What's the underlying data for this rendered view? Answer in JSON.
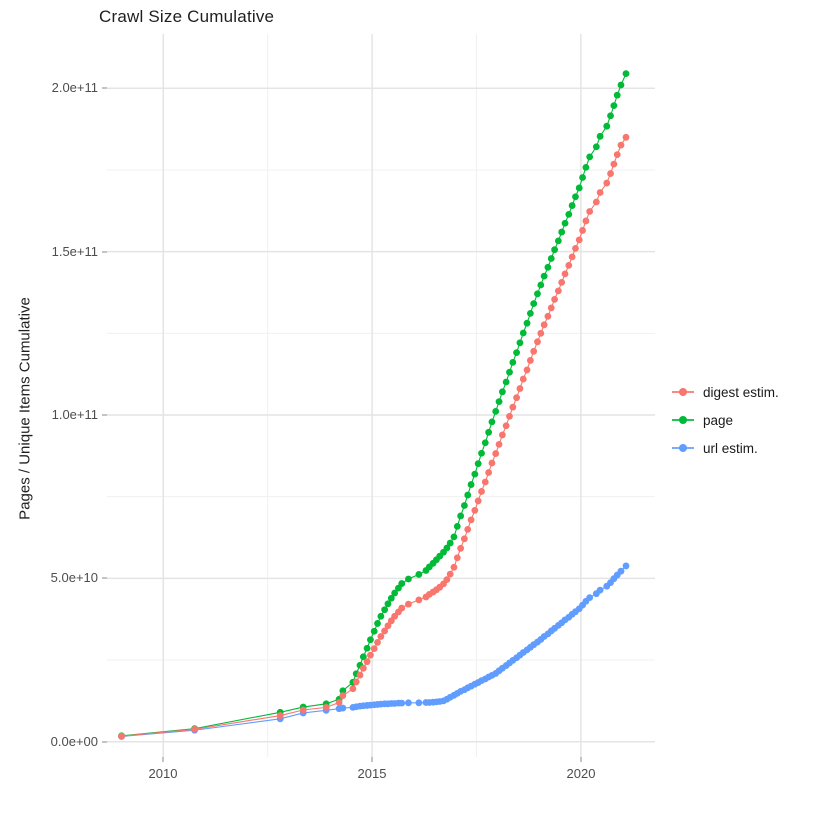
{
  "page": {
    "title": "Crawl Size Cumulative"
  },
  "axes": {
    "y_label": "Pages / Unique Items Cumulative",
    "y_ticks": [
      "0.0e+00",
      "5.0e+10",
      "1.0e+11",
      "1.5e+11",
      "2.0e+11"
    ],
    "x_ticks": [
      "2010",
      "2015",
      "2020"
    ]
  },
  "legend": {
    "items": [
      {
        "label": "digest estim.",
        "color": "#F8766D"
      },
      {
        "label": "page",
        "color": "#00BA38"
      },
      {
        "label": "url estim.",
        "color": "#619CFF"
      }
    ]
  },
  "chart_data": {
    "type": "line",
    "title": "Crawl Size Cumulative",
    "xlabel": "",
    "ylabel": "Pages / Unique Items Cumulative",
    "x_unit": "decimal year (crawl date)",
    "y_unit": "billions of pages / unique items (1e9)",
    "xlim": [
      2008.6,
      2021.8
    ],
    "ylim": [
      0,
      215
    ],
    "x_tick_values": [
      2010,
      2015,
      2020
    ],
    "y_tick_values": [
      0,
      50,
      100,
      150,
      200
    ],
    "y_tick_labels": [
      "0.0e+00",
      "5.0e+10",
      "1.0e+11",
      "1.5e+11",
      "2.0e+11"
    ],
    "grid": true,
    "legend_position": "right",
    "marker": "point",
    "x": [
      2009.0,
      2010.75,
      2012.8,
      2013.35,
      2013.9,
      2014.21,
      2014.3,
      2014.54,
      2014.62,
      2014.71,
      2014.79,
      2014.88,
      2014.96,
      2015.05,
      2015.13,
      2015.21,
      2015.3,
      2015.38,
      2015.46,
      2015.54,
      2015.63,
      2015.71,
      2015.87,
      2016.12,
      2016.29,
      2016.37,
      2016.46,
      2016.54,
      2016.62,
      2016.71,
      2016.79,
      2016.87,
      2016.96,
      2017.04,
      2017.12,
      2017.21,
      2017.29,
      2017.37,
      2017.46,
      2017.54,
      2017.62,
      2017.71,
      2017.79,
      2017.87,
      2017.96,
      2018.04,
      2018.12,
      2018.21,
      2018.29,
      2018.37,
      2018.46,
      2018.54,
      2018.62,
      2018.71,
      2018.79,
      2018.87,
      2018.96,
      2019.04,
      2019.12,
      2019.21,
      2019.29,
      2019.37,
      2019.46,
      2019.54,
      2019.62,
      2019.71,
      2019.79,
      2019.87,
      2019.96,
      2020.04,
      2020.12,
      2020.21,
      2020.37,
      2020.46,
      2020.62,
      2020.71,
      2020.79,
      2020.87,
      2020.96,
      2021.08
    ],
    "series": [
      {
        "name": "digest estim.",
        "color": "#F8766D",
        "values": [
          1.7,
          3.8,
          8.0,
          9.7,
          10.5,
          12.0,
          14.1,
          16.2,
          18.3,
          20.4,
          22.5,
          24.5,
          26.5,
          28.5,
          30.4,
          32.2,
          33.9,
          35.5,
          37.0,
          38.4,
          39.7,
          40.9,
          42.1,
          43.4,
          44.3,
          45.1,
          45.8,
          46.5,
          47.3,
          48.3,
          49.6,
          51.3,
          53.4,
          56.3,
          59.2,
          62.1,
          65.0,
          67.9,
          70.8,
          73.7,
          76.6,
          79.5,
          82.4,
          85.3,
          88.2,
          91.0,
          93.9,
          96.7,
          99.6,
          102.4,
          105.3,
          108.1,
          111.0,
          113.8,
          116.7,
          119.5,
          122.4,
          125.0,
          127.6,
          130.2,
          132.8,
          135.4,
          138.0,
          140.6,
          143.2,
          145.8,
          148.4,
          151.0,
          153.6,
          156.5,
          159.4,
          162.3,
          165.2,
          168.1,
          171.0,
          173.9,
          176.8,
          179.7,
          182.6,
          185.0
        ]
      },
      {
        "name": "page",
        "color": "#00BA38",
        "values": [
          1.8,
          4.0,
          9.0,
          10.6,
          11.6,
          13.0,
          15.6,
          18.2,
          20.8,
          23.4,
          26.0,
          28.6,
          31.2,
          33.8,
          36.2,
          38.4,
          40.4,
          42.2,
          43.9,
          45.5,
          47.0,
          48.4,
          49.8,
          51.2,
          52.4,
          53.5,
          54.6,
          55.7,
          56.8,
          58.0,
          59.3,
          60.8,
          62.7,
          65.9,
          69.1,
          72.3,
          75.5,
          78.7,
          81.9,
          85.1,
          88.3,
          91.5,
          94.7,
          97.9,
          101.1,
          104.1,
          107.1,
          110.1,
          113.1,
          116.1,
          119.1,
          122.1,
          125.1,
          128.1,
          131.1,
          134.1,
          137.1,
          139.8,
          142.5,
          145.2,
          147.9,
          150.6,
          153.3,
          156.0,
          158.7,
          161.4,
          164.1,
          166.8,
          169.5,
          172.7,
          175.8,
          179.0,
          182.1,
          185.3,
          188.4,
          191.6,
          194.7,
          197.9,
          201.0,
          204.5
        ]
      },
      {
        "name": "url estim.",
        "color": "#619CFF",
        "values": [
          1.6,
          3.5,
          7.0,
          8.8,
          9.6,
          10.1,
          10.3,
          10.5,
          10.7,
          10.9,
          11.0,
          11.1,
          11.2,
          11.3,
          11.4,
          11.5,
          11.6,
          11.6,
          11.7,
          11.7,
          11.8,
          11.8,
          11.9,
          11.9,
          12.0,
          12.0,
          12.1,
          12.2,
          12.3,
          12.5,
          13.0,
          13.6,
          14.2,
          14.8,
          15.4,
          15.9,
          16.5,
          17.0,
          17.6,
          18.1,
          18.7,
          19.2,
          19.8,
          20.3,
          20.9,
          21.7,
          22.5,
          23.3,
          24.1,
          24.9,
          25.7,
          26.5,
          27.3,
          28.1,
          28.9,
          29.7,
          30.5,
          31.3,
          32.2,
          33.0,
          33.9,
          34.7,
          35.6,
          36.4,
          37.3,
          38.1,
          39.0,
          39.8,
          40.7,
          41.8,
          43.0,
          44.1,
          45.3,
          46.4,
          47.6,
          48.7,
          49.9,
          51.0,
          52.2,
          53.8
        ]
      }
    ]
  }
}
